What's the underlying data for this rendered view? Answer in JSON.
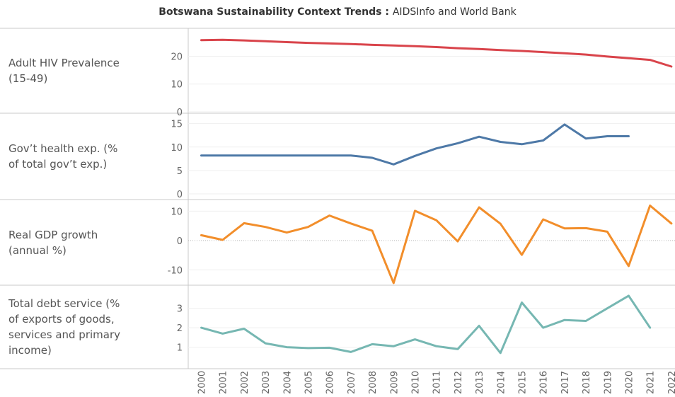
{
  "chart_data": {
    "type": "line",
    "title": "Botswana Sustainability Context Trends",
    "title_separator": " : ",
    "subtitle": "AIDSInfo and World Bank",
    "years": [
      "2000",
      "2001",
      "2002",
      "2003",
      "2004",
      "2005",
      "2006",
      "2007",
      "2008",
      "2009",
      "2010",
      "2011",
      "2012",
      "2013",
      "2014",
      "2015",
      "2016",
      "2017",
      "2018",
      "2019",
      "2020",
      "2021",
      "2022"
    ],
    "panels": [
      {
        "label_lines": [
          "Adult HIV Prevalence",
          "(15-49)"
        ],
        "color": "#d9444b",
        "ylim": [
          0,
          27
        ],
        "ticks": [
          0,
          10,
          20
        ],
        "values": [
          25.8,
          25.9,
          25.7,
          25.4,
          25.1,
          24.8,
          24.6,
          24.4,
          24.1,
          23.9,
          23.6,
          23.3,
          22.9,
          22.6,
          22.2,
          21.9,
          21.5,
          21.1,
          20.6,
          19.9,
          19.3,
          18.7,
          16.3
        ]
      },
      {
        "label_lines": [
          "Gov’t health exp. (%",
          "of total gov’t exp.)"
        ],
        "color": "#4e79a7",
        "ylim": [
          0,
          16
        ],
        "ticks": [
          0,
          5,
          10,
          15
        ],
        "values": [
          8.2,
          8.2,
          8.2,
          8.2,
          8.2,
          8.2,
          8.2,
          8.2,
          7.7,
          6.3,
          8.1,
          9.7,
          10.8,
          12.2,
          11.1,
          10.6,
          11.4,
          14.8,
          11.8,
          12.3,
          12.3,
          null,
          null
        ]
      },
      {
        "label_lines": [
          "Real GDP growth",
          "(annual %)"
        ],
        "color": "#f28e2b",
        "ylim": [
          -15,
          12.5
        ],
        "ticks": [
          -10,
          0,
          10
        ],
        "zero_line": true,
        "values": [
          1.8,
          0.2,
          5.9,
          4.6,
          2.7,
          4.6,
          8.5,
          5.8,
          3.3,
          -14.5,
          10.1,
          6.9,
          -0.3,
          11.3,
          5.7,
          -4.9,
          7.2,
          4.1,
          4.2,
          3.0,
          -8.7,
          11.9,
          5.8
        ]
      },
      {
        "label_lines": [
          "Total debt service (%",
          "of exports of goods,",
          "services and primary",
          "income)"
        ],
        "color": "#76b7b2",
        "ylim": [
          0,
          3.9
        ],
        "ticks": [
          1,
          2,
          3
        ],
        "values": [
          2.0,
          1.7,
          1.95,
          1.2,
          1.0,
          0.95,
          0.97,
          0.75,
          1.15,
          1.05,
          1.4,
          1.05,
          0.9,
          2.1,
          0.7,
          3.3,
          2.0,
          2.4,
          2.35,
          3.0,
          3.65,
          2.0,
          null
        ]
      }
    ]
  }
}
